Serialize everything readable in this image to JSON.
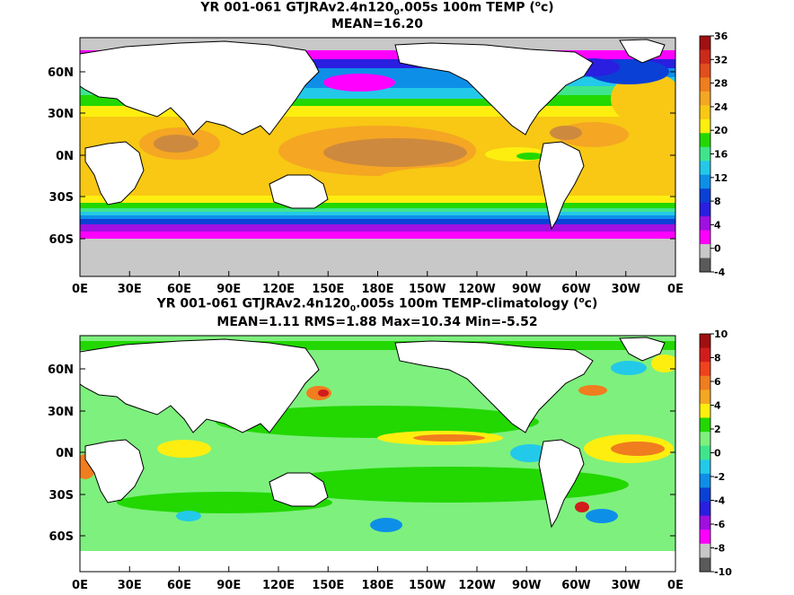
{
  "panels": [
    {
      "title_pre": "YR 001-061 GTJRAv2.4n120",
      "title_sub": "0",
      "title_mid": ".005s 100m TEMP (",
      "title_sup": "o",
      "title_post": "c)",
      "stats": "MEAN=16.20",
      "colorbar_labels": [
        "36",
        "32",
        "28",
        "24",
        "20",
        "16",
        "12",
        "8",
        "4",
        "0",
        "-4"
      ],
      "colorbar_colors": [
        "#a01010",
        "#cc2a1a",
        "#e24e1c",
        "#f07d1e",
        "#f5a623",
        "#f8c814",
        "#fdee10",
        "#22d800",
        "#3fe58c",
        "#23c9e9",
        "#0d8fe8",
        "#0b40d6",
        "#2a1ee0",
        "#a010e0",
        "#ff00ff",
        "#c8c8c8",
        "#5a5a5a"
      ]
    },
    {
      "title_pre": "YR 001-061 GTJRAv2.4n120",
      "title_sub": "0",
      "title_mid": ".005s 100m TEMP-climatology (",
      "title_sup": "o",
      "title_post": "c)",
      "stats": "MEAN=1.11   RMS=1.88   Max=10.34   Min=-5.52",
      "colorbar_labels": [
        "10",
        "8",
        "6",
        "4",
        "2",
        "0",
        "-2",
        "-4",
        "-6",
        "-8",
        "-10"
      ],
      "colorbar_colors": [
        "#a01010",
        "#d21c1c",
        "#f0421c",
        "#f07d1e",
        "#f5a623",
        "#fdee10",
        "#22d800",
        "#7ef07e",
        "#3fe58c",
        "#23c9e9",
        "#0d8fe8",
        "#0b40d6",
        "#2a1ee0",
        "#a010e0",
        "#ff00ff",
        "#c8c8c8",
        "#5a5a5a"
      ]
    }
  ],
  "x_tick_labels": [
    "0E",
    "30E",
    "60E",
    "90E",
    "120E",
    "150E",
    "180E",
    "150W",
    "120W",
    "90W",
    "60W",
    "30W",
    "0E"
  ],
  "y_tick_labels": [
    "60N",
    "30N",
    "0N",
    "30S",
    "60S"
  ]
}
